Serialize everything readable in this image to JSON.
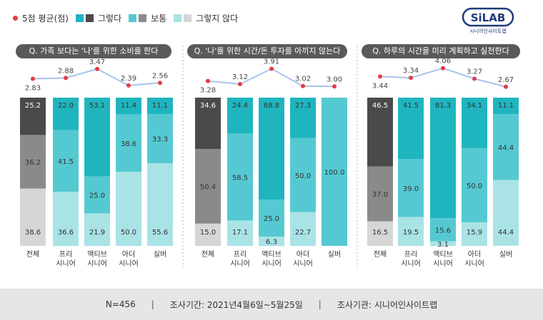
{
  "legend": {
    "avg_label": "5점 평균(점)",
    "yes_label": "그렇다",
    "neutral_label": "보통",
    "no_label": "그렇지 않다"
  },
  "logo": {
    "text": "SiLAB",
    "subtext": "시니어인사이트랩"
  },
  "colors": {
    "avg_line": "#e53a45",
    "avg_line_stroke": "#a9c3ee",
    "yes_panel1": "#4a4a4a",
    "neutral_panel1": "#8a8a8a",
    "no_panel1": "#d6d6d6",
    "yes": "#1fb5bf",
    "neutral": "#55c9d2",
    "no": "#a9e3e6",
    "footer_bg": "#e6e6e6",
    "title_bg": "#5a5a5a"
  },
  "footer": {
    "n": "N=456",
    "period": "조사기간: 2021년4월6일~5월25일",
    "org": "조사기관: 시니어인사이트랩"
  },
  "chart_data": [
    {
      "type": "bar",
      "title": "Q. 가족 보다는 '나'를 위한 소비를 한다",
      "categories": [
        [
          "전체"
        ],
        [
          "프리",
          "시니어"
        ],
        [
          "액티브",
          "시니어"
        ],
        [
          "아더",
          "시니어"
        ],
        [
          "실버"
        ]
      ],
      "series": [
        {
          "name": "그렇다",
          "values": [
            25.2,
            22.0,
            53.1,
            11.4,
            11.1
          ]
        },
        {
          "name": "보통",
          "values": [
            36.2,
            41.5,
            25.0,
            38.6,
            33.3
          ]
        },
        {
          "name": "그렇지 않다",
          "values": [
            38.6,
            36.6,
            21.9,
            50.0,
            55.6
          ]
        }
      ],
      "average": {
        "name": "5점 평균(점)",
        "values": [
          2.83,
          2.88,
          3.47,
          2.39,
          2.56
        ]
      },
      "value_labels": {
        "yes": [
          "25.2",
          "22.0",
          "53.1",
          "11.4",
          "11.1"
        ],
        "neutral": [
          "36.2",
          "41.5",
          "25.0",
          "38.6",
          "33.3"
        ],
        "no": [
          "38.6",
          "36.6",
          "21.9",
          "50.0",
          "55.6"
        ],
        "avg": [
          "2.83",
          "2.88",
          "3.47",
          "2.39",
          "2.56"
        ]
      },
      "ylim": [
        0,
        100
      ]
    },
    {
      "type": "bar",
      "title": "Q. '나'를 위한 시간/돈 투자를 아끼지 않는다",
      "categories": [
        [
          "전체"
        ],
        [
          "프리",
          "시니어"
        ],
        [
          "액티브",
          "시니어"
        ],
        [
          "아더",
          "시니어"
        ],
        [
          "실버"
        ]
      ],
      "series": [
        {
          "name": "그렇다",
          "values": [
            34.6,
            24.4,
            68.8,
            27.3,
            0
          ]
        },
        {
          "name": "보통",
          "values": [
            50.4,
            58.5,
            25.0,
            50.0,
            100.0
          ]
        },
        {
          "name": "그렇지 않다",
          "values": [
            15.0,
            17.1,
            6.3,
            22.7,
            0
          ]
        }
      ],
      "average": {
        "name": "5점 평균(점)",
        "values": [
          3.28,
          3.12,
          3.91,
          3.02,
          3.0
        ]
      },
      "value_labels": {
        "yes": [
          "34.6",
          "24.4",
          "68.8",
          "27.3",
          ""
        ],
        "neutral": [
          "50.4",
          "58.5",
          "25.0",
          "50.0",
          "100.0"
        ],
        "no": [
          "15.0",
          "17.1",
          "6.3",
          "22.7",
          ""
        ],
        "avg": [
          "3.28",
          "3.12",
          "3.91",
          "3.02",
          "3.00"
        ]
      },
      "ylim": [
        0,
        100
      ]
    },
    {
      "type": "bar",
      "title": "Q. 하루의 시간을 미리 계획하고 실천한다",
      "categories": [
        [
          "전체"
        ],
        [
          "프리",
          "시니어"
        ],
        [
          "액티브",
          "시니어"
        ],
        [
          "아더",
          "시니어"
        ],
        [
          "실버"
        ]
      ],
      "series": [
        {
          "name": "그렇다",
          "values": [
            46.5,
            41.5,
            81.3,
            34.1,
            11.1
          ]
        },
        {
          "name": "보통",
          "values": [
            37.0,
            39.0,
            15.6,
            50.0,
            44.4
          ]
        },
        {
          "name": "그렇지 않다",
          "values": [
            16.5,
            19.5,
            3.1,
            15.9,
            44.4
          ]
        }
      ],
      "average": {
        "name": "5점 평균(점)",
        "values": [
          3.44,
          3.34,
          4.06,
          3.27,
          2.67
        ]
      },
      "value_labels": {
        "yes": [
          "46.5",
          "41.5",
          "81.3",
          "34.1",
          "11.1"
        ],
        "neutral": [
          "37.0",
          "39.0",
          "15.6",
          "50.0",
          "44.4"
        ],
        "no": [
          "16.5",
          "19.5",
          "3.1",
          "15.9",
          "44.4"
        ],
        "avg": [
          "3.44",
          "3.34",
          "4.06",
          "3.27",
          "2.67"
        ]
      },
      "ylim": [
        0,
        100
      ]
    }
  ]
}
